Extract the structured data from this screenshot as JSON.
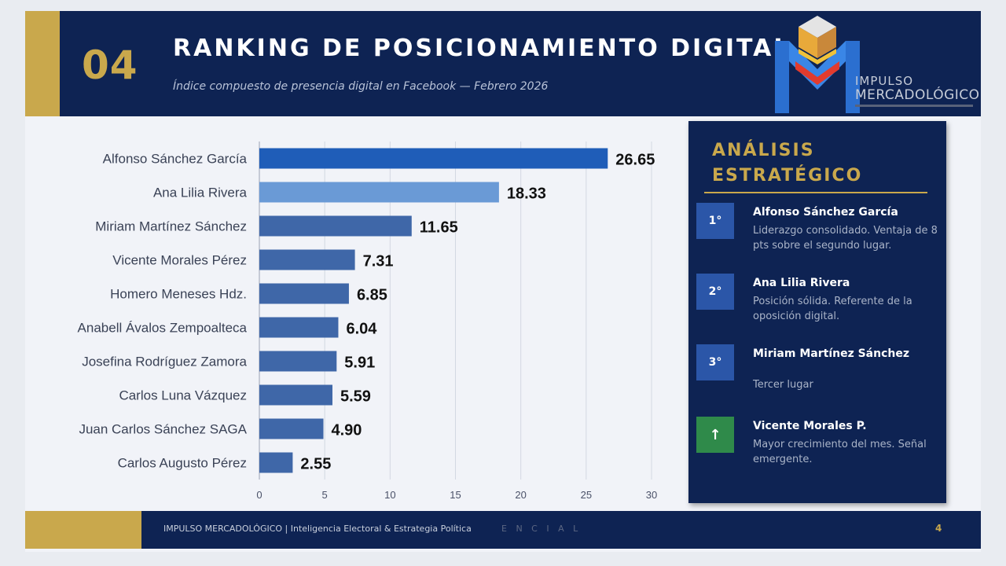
{
  "slide": {
    "number": "04",
    "title": "RANKING DE POSICIONAMIENTO DIGITAL",
    "subtitle": "Índice compuesto de presencia digital en Facebook — Febrero 2026",
    "page": "4"
  },
  "logo": {
    "line1": "IMPULSO",
    "line2": "MERCADOLÓGICO"
  },
  "footer": {
    "text": "IMPULSO MERCADOLÓGICO  |  Inteligencia Electoral & Estrategia Política",
    "faint": "E N C I A L"
  },
  "colors": {
    "navy": "#0e2353",
    "gold": "#c9a84c",
    "bar_primary": "#1f5db8",
    "bar_secondary": "#6a9ad6",
    "bar_default": "#3f67a8",
    "badge_blue": "#2b56a8",
    "badge_green": "#2f8a4a"
  },
  "chart_data": {
    "type": "bar",
    "orientation": "horizontal",
    "categories": [
      "Alfonso Sánchez García",
      "Ana Lilia Rivera",
      "Miriam Martínez Sánchez",
      "Vicente Morales Pérez",
      "Homero Meneses Hdz.",
      "Anabell Ávalos Zempoalteca",
      "Josefina Rodríguez Zamora",
      "Carlos Luna Vázquez",
      "Juan Carlos Sánchez SAGA",
      "Carlos Augusto Pérez"
    ],
    "values": [
      26.65,
      18.33,
      11.65,
      7.31,
      6.85,
      6.04,
      5.91,
      5.59,
      4.9,
      2.55
    ],
    "value_labels": [
      "26.65",
      "18.33",
      "11.65",
      "7.31",
      "6.85",
      "6.04",
      "5.91",
      "5.59",
      "4.90",
      "2.55"
    ],
    "xlim": [
      0,
      30
    ],
    "xticks": [
      0,
      5,
      10,
      15,
      20,
      25,
      30
    ],
    "grid": true
  },
  "panel": {
    "title_line1": "ANÁLISIS",
    "title_line2": "ESTRATÉGICO",
    "items": [
      {
        "badge": "1°",
        "name": "Alfonso Sánchez García",
        "desc": "Liderazgo consolidado. Ventaja de 8 pts sobre el segundo lugar."
      },
      {
        "badge": "2°",
        "name": "Ana Lilia Rivera",
        "desc": "Posición sólida. Referente de la oposición digital."
      },
      {
        "badge": "3°",
        "name": "Miriam Martínez Sánchez",
        "desc": "Tercer lugar"
      },
      {
        "badge": "↑",
        "name": "Vicente Morales P.",
        "desc": "Mayor crecimiento del mes. Señal emergente."
      }
    ]
  }
}
